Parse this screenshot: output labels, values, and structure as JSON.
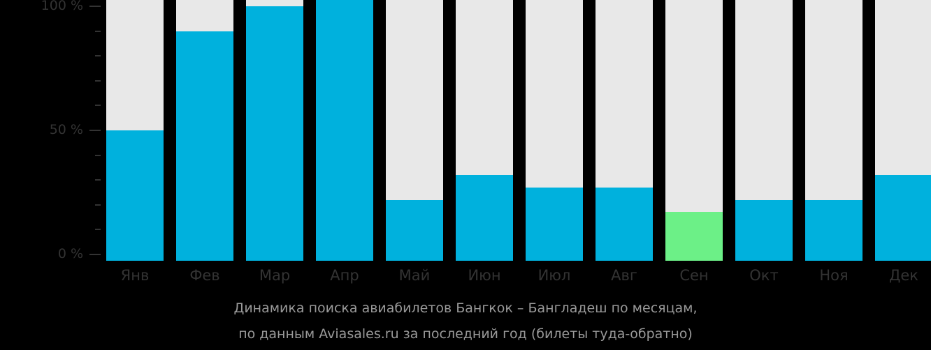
{
  "chart_data": {
    "type": "bar",
    "title": "Динамика поиска авиабилетов Бангкок – Бангладеш по месяцам, по данным Aviasales.ru за последний год (билеты туда-обратно)",
    "xlabel": "",
    "ylabel": "",
    "ylim": [
      0,
      100
    ],
    "yticks": [
      "0 %",
      "50 %",
      "100 %"
    ],
    "categories": [
      "Янв",
      "Фев",
      "Мар",
      "Апр",
      "Май",
      "Июн",
      "Июл",
      "Авг",
      "Сен",
      "Окт",
      "Ноя",
      "Дек"
    ],
    "values": [
      50,
      90,
      100,
      103,
      22,
      32,
      27,
      27,
      17,
      22,
      22,
      32
    ],
    "highlight_index": 8,
    "colors": {
      "bar": "#00b1dd",
      "highlight": "#6cf087",
      "background_bar": "#e8e8e8"
    },
    "grid": false,
    "legend": "none"
  },
  "caption": {
    "line1": "Динамика поиска авиабилетов Бангкок – Бангладеш по месяцам,",
    "line2": "по данным Aviasales.ru за последний год (билеты туда-обратно)"
  }
}
